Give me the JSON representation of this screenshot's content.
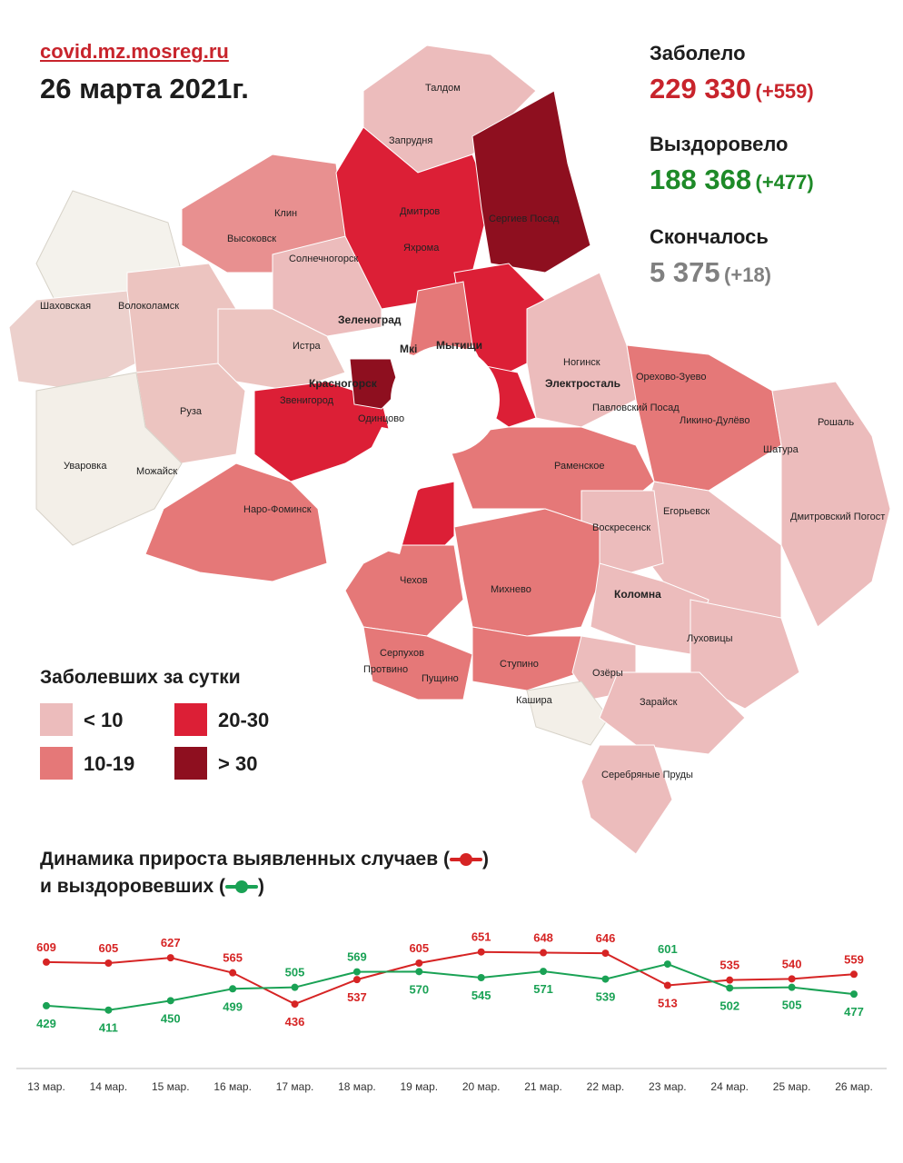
{
  "header": {
    "source": "covid.mz.mosreg.ru",
    "date": "26 марта 2021г."
  },
  "stats": {
    "infected": {
      "label": "Заболело",
      "value": "229 330",
      "delta": "(+559)",
      "color": "#c8242c"
    },
    "recovered": {
      "label": "Выздоровело",
      "value": "188 368",
      "delta": "(+477)",
      "color": "#1e8a28"
    },
    "died": {
      "label": "Скончалось",
      "value": "5 375",
      "delta": "(+18)",
      "color": "#808080"
    }
  },
  "legend": {
    "title": "Заболевших за сутки",
    "items": [
      {
        "label": "< 10",
        "color": "#ecbcbc"
      },
      {
        "label": "10-19",
        "color": "#e57878"
      },
      {
        "label": "20-30",
        "color": "#dc1f36"
      },
      {
        "label": "> 30",
        "color": "#8e0f1f"
      }
    ]
  },
  "map": {
    "labels": [
      "Талдом",
      "Запрудня",
      "Дмитров",
      "Яхрома",
      "Сергиев Посад",
      "Клин",
      "Высоковск",
      "Солнечногорск",
      "Шаховская",
      "Волоколамск",
      "Зеленоград",
      "Истра",
      "Мытищи",
      "Ногинск",
      "Электросталь",
      "Орехово-Зуево",
      "Павловский Посад",
      "Ликино-Дулёво",
      "Рошаль",
      "Красногорск",
      "Звенигород",
      "Одинцово",
      "Руза",
      "Уваровка",
      "Можайск",
      "Наро-Фоминск",
      "Раменское",
      "Шатура",
      "Егорьевск",
      "Воскресенск",
      "Дмитровский Погост",
      "Чехов",
      "Михнево",
      "Коломна",
      "Луховицы",
      "Серпухов",
      "Пущино",
      "Ступино",
      "Озёры",
      "Кашира",
      "Зарайск",
      "Серебряные Пруды",
      "Протвино",
      "Мкі"
    ]
  },
  "dynamics": {
    "title_line1": "Динамика прироста выявленных случаев (",
    "title_line1_end": ")",
    "title_line2": "и выздоровевших (",
    "title_line2_end": ")"
  },
  "chart_data": {
    "type": "line",
    "x": [
      "13 мар.",
      "14 мар.",
      "15 мар.",
      "16 мар.",
      "17 мар.",
      "18 мар.",
      "19 мар.",
      "20 мар.",
      "21 мар.",
      "22 мар.",
      "23 мар.",
      "24 мар.",
      "25 мар.",
      "26 мар."
    ],
    "series": [
      {
        "values": [
          609,
          605,
          627,
          565,
          436,
          537,
          605,
          651,
          648,
          646,
          513,
          535,
          540,
          559
        ],
        "color": "#d62424"
      },
      {
        "values": [
          429,
          411,
          450,
          499,
          505,
          569,
          570,
          545,
          571,
          539,
          601,
          502,
          505,
          477
        ],
        "color": "#1aa255"
      }
    ],
    "ylim": [
      380,
      680
    ],
    "grid": false
  }
}
